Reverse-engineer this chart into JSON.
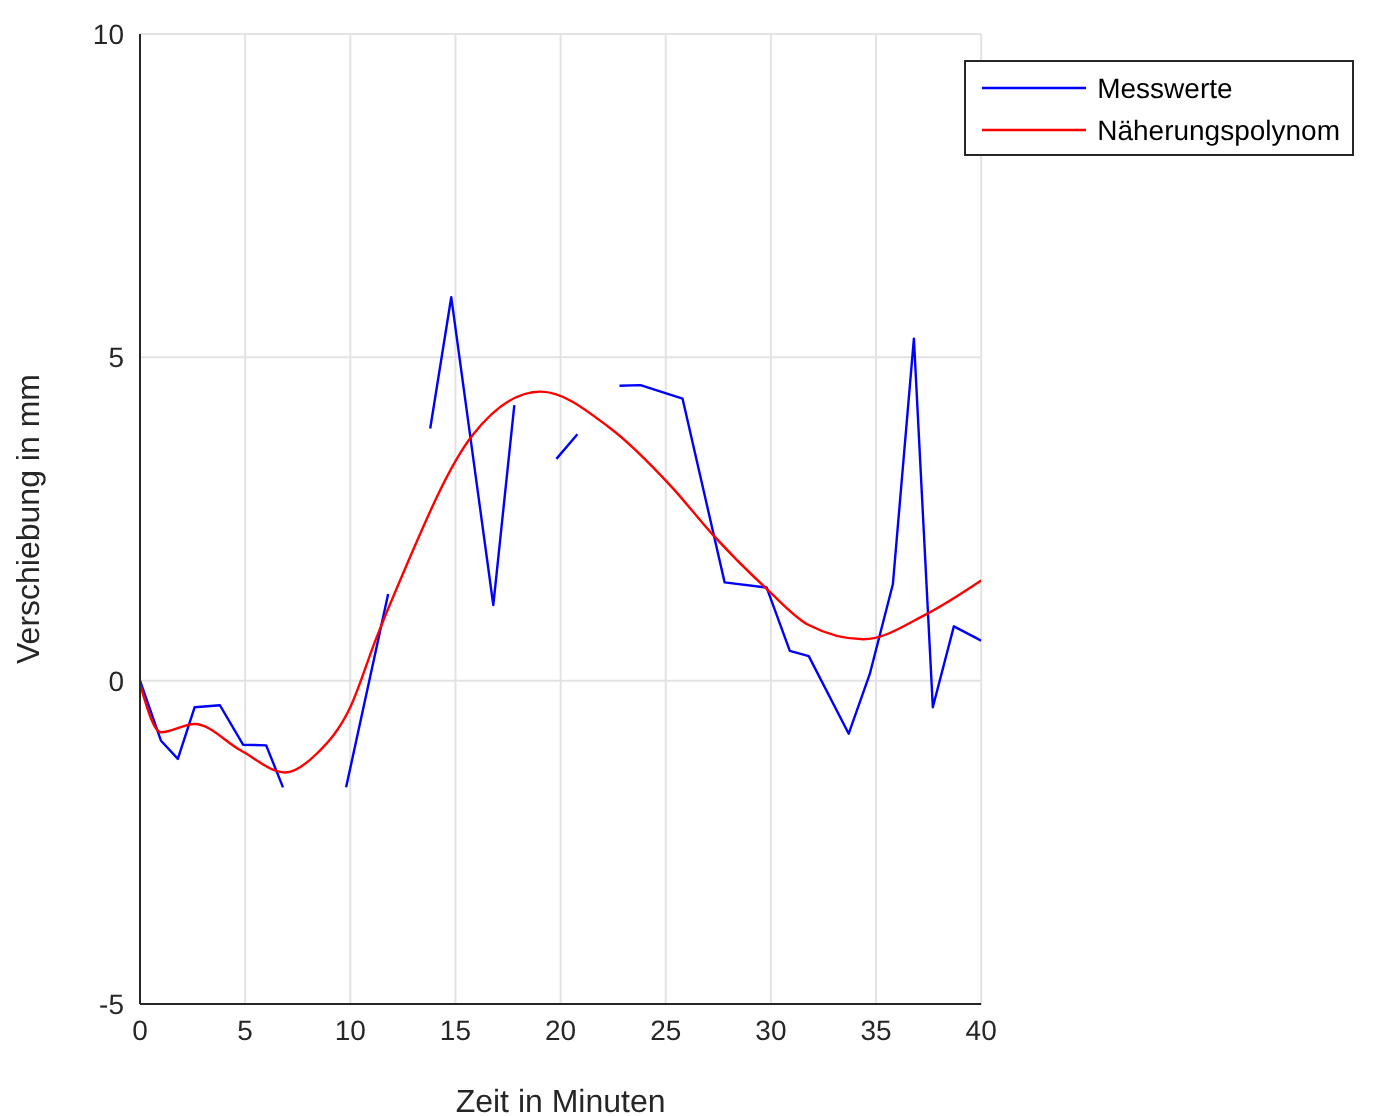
{
  "chart_data": {
    "type": "line",
    "xlabel": "Zeit in Minuten",
    "ylabel": "Verschiebung in mm",
    "xlim": [
      0,
      40
    ],
    "xticks": [
      0,
      5,
      10,
      15,
      20,
      25,
      30,
      35,
      40
    ],
    "ylim": [
      -5,
      10
    ],
    "yticks": [
      -5,
      0,
      5,
      10
    ],
    "grid": true,
    "legend": "top right",
    "marker": "none",
    "line_style": "solid",
    "series": [
      {
        "name": "Messwerte",
        "color": "#0000ff",
        "x": [
          0,
          1,
          1.8,
          2.6,
          3.8,
          4.9,
          6,
          6.8,
          8.8,
          9.8,
          11.8,
          12.8,
          13.8,
          14.8,
          16.8,
          17.8,
          18.8,
          19.8,
          20.8,
          21.8,
          22.8,
          23.8,
          25.8,
          27.8,
          29.8,
          30.9,
          31.8,
          33.7,
          34.7,
          35.8,
          36.8,
          37.7,
          38.7,
          40
        ],
        "values": [
          0,
          -0.93,
          -1.21,
          -0.41,
          -0.38,
          -0.99,
          -1.0,
          -1.65,
          null,
          -1.65,
          1.34,
          null,
          3.9,
          5.93,
          1.17,
          4.26,
          null,
          3.43,
          3.81,
          null,
          4.56,
          4.57,
          4.36,
          1.52,
          1.44,
          0.46,
          0.38,
          -0.82,
          0.1,
          1.49,
          5.29,
          -0.41,
          0.84,
          0.62
        ]
      },
      {
        "name": "Näherungspolynom",
        "color": "#ff0000",
        "x": [
          0,
          1,
          2.6,
          4.8,
          6.9,
          8.4,
          10,
          11.25,
          12.3,
          15.8,
          19.05,
          22.3,
          25.3,
          27.2,
          29.8,
          31.8,
          34.4,
          37.4,
          40
        ],
        "values": [
          -0.05,
          -0.8,
          -0.67,
          -1.08,
          -1.42,
          -1.13,
          -0.41,
          0.67,
          1.5,
          3.79,
          4.47,
          3.92,
          2.99,
          2.27,
          1.42,
          0.86,
          0.64,
          1.03,
          1.55
        ]
      }
    ]
  }
}
